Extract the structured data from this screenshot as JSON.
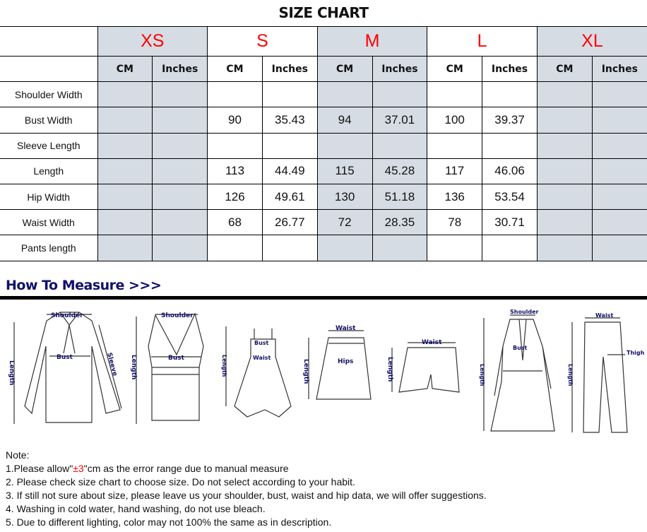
{
  "title": "SIZE CHART",
  "sizes": [
    "XS",
    "S",
    "M",
    "L",
    "XL"
  ],
  "units": [
    "CM",
    "Inches"
  ],
  "rows": [
    {
      "label": "Shoulder Width",
      "values": [
        "",
        "",
        "",
        "",
        "",
        "",
        "",
        "",
        "",
        ""
      ]
    },
    {
      "label": "Bust Width",
      "values": [
        "",
        "",
        "90",
        "35.43",
        "94",
        "37.01",
        "100",
        "39.37",
        "",
        ""
      ]
    },
    {
      "label": "Sleeve Length",
      "values": [
        "",
        "",
        "",
        "",
        "",
        "",
        "",
        "",
        "",
        ""
      ]
    },
    {
      "label": "Length",
      "values": [
        "",
        "",
        "113",
        "44.49",
        "115",
        "45.28",
        "117",
        "46.06",
        "",
        ""
      ]
    },
    {
      "label": "Hip Width",
      "values": [
        "",
        "",
        "126",
        "49.61",
        "130",
        "51.18",
        "136",
        "53.54",
        "",
        ""
      ]
    },
    {
      "label": "Waist Width",
      "values": [
        "",
        "",
        "68",
        "26.77",
        "72",
        "28.35",
        "78",
        "30.71",
        "",
        ""
      ]
    },
    {
      "label": "Pants length",
      "values": [
        "",
        "",
        "",
        "",
        "",
        "",
        "",
        "",
        "",
        ""
      ]
    }
  ],
  "how_to_measure": "How To Measure >>>",
  "diagram_labels": {
    "shoulder": "Shoulder",
    "bust": "Bust",
    "sleeve": "Sleeve",
    "length": "Length",
    "waist": "Waist",
    "hips": "Hips",
    "thigh": "Thigh"
  },
  "notes": {
    "heading": "Note:",
    "line1_pre": "1.Please allow\"",
    "line1_red": "±3",
    "line1_post": "\"cm as the error range due to manual measure",
    "line2": "2. Please check size chart to choose size. Do not select according to your habit.",
    "line3": "3. If still not sure about size, please leave us your shoulder, bust, waist and hip data, we will offer suggestions.",
    "line4": "4. Washing in cold water, hand washing, do not use bleach.",
    "line5": "5. Due to different lighting, color may not 100% the same as in description."
  },
  "colors": {
    "size_label": "#ff0000",
    "shaded_column": "#d6dce4",
    "heading": "#10106a"
  }
}
